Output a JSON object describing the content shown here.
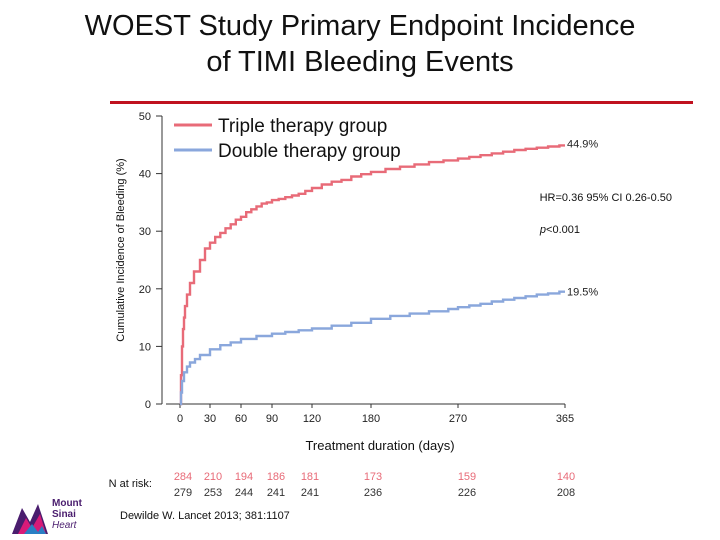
{
  "slide": {
    "title_line1": "WOEST Study Primary Endpoint Incidence",
    "title_line2": "of TIMI Bleeding Events",
    "citation": "Dewilde W. Lancet 2013; 381:1107",
    "logo_text_line1": "Mount",
    "logo_text_line2": "Sinai",
    "logo_text_line3": "Heart"
  },
  "colors": {
    "triple": "#e86b78",
    "double": "#8aa7dc",
    "axis": "#333333",
    "accent_rule": "#c0111f"
  },
  "chart_data": {
    "type": "line",
    "title": "WOEST Study Primary Endpoint Incidence of TIMI Bleeding Events",
    "xlabel": "Treatment duration (days)",
    "ylabel": "Cumulative Incidence of Bleeding (%)",
    "xlim": [
      0,
      365
    ],
    "ylim": [
      0,
      50
    ],
    "x_ticks": [
      0,
      30,
      60,
      90,
      120,
      180,
      270,
      365
    ],
    "y_ticks": [
      0,
      10,
      20,
      30,
      40,
      50
    ],
    "legend": [
      "Triple therapy group",
      "Double therapy group"
    ],
    "legend_position": "top-left",
    "series": [
      {
        "name": "Triple therapy group",
        "color_key": "triple",
        "x": [
          0,
          1,
          2,
          3,
          4,
          5,
          7,
          10,
          14,
          20,
          25,
          30,
          35,
          40,
          45,
          50,
          55,
          60,
          65,
          70,
          75,
          80,
          85,
          90,
          95,
          100,
          105,
          110,
          115,
          120,
          130,
          140,
          150,
          160,
          170,
          180,
          195,
          210,
          225,
          240,
          255,
          270,
          280,
          290,
          300,
          310,
          320,
          330,
          340,
          350,
          360,
          365
        ],
        "y": [
          0,
          5,
          10,
          13,
          15,
          17,
          19,
          21,
          23,
          25,
          27,
          28,
          29,
          29.7,
          30.5,
          31.2,
          32,
          32.5,
          33.3,
          33.8,
          34.3,
          34.8,
          35,
          35.4,
          35.6,
          35.9,
          36.2,
          36.5,
          37,
          37.5,
          38.1,
          38.6,
          38.9,
          39.5,
          39.9,
          40.3,
          40.8,
          41.2,
          41.6,
          42,
          42.3,
          42.6,
          42.9,
          43.2,
          43.5,
          43.8,
          44.1,
          44.3,
          44.5,
          44.7,
          44.9,
          44.9
        ]
      },
      {
        "name": "Double therapy group",
        "color_key": "double",
        "x": [
          0,
          1,
          2,
          4,
          7,
          10,
          15,
          20,
          30,
          40,
          50,
          60,
          75,
          90,
          100,
          110,
          120,
          140,
          160,
          180,
          200,
          220,
          240,
          260,
          270,
          280,
          290,
          300,
          310,
          320,
          330,
          340,
          350,
          360,
          365
        ],
        "y": [
          0,
          2,
          4,
          5.5,
          6.5,
          7.2,
          7.8,
          8.5,
          9.5,
          10.2,
          10.7,
          11.3,
          11.8,
          12.2,
          12.5,
          12.8,
          13.1,
          13.6,
          14.1,
          14.8,
          15.3,
          15.7,
          16.1,
          16.5,
          16.8,
          17.1,
          17.4,
          17.8,
          18.1,
          18.4,
          18.7,
          19,
          19.2,
          19.5,
          19.5
        ]
      }
    ],
    "annotations": {
      "triple_end_label": "44.9%",
      "double_end_label": "19.5%",
      "hr_text": "HR=0.36  95% CI 0.26-0.50",
      "p_prefix": "p",
      "p_rest": "<0.001"
    },
    "n_at_risk": {
      "label": "N at risk:",
      "days": [
        0,
        30,
        60,
        90,
        120,
        180,
        270,
        365
      ],
      "triple": [
        "284",
        "210",
        "194",
        "186",
        "181",
        "173",
        "159",
        "140"
      ],
      "double": [
        "279",
        "253",
        "244",
        "241",
        "241",
        "236",
        "226",
        "208"
      ]
    }
  }
}
